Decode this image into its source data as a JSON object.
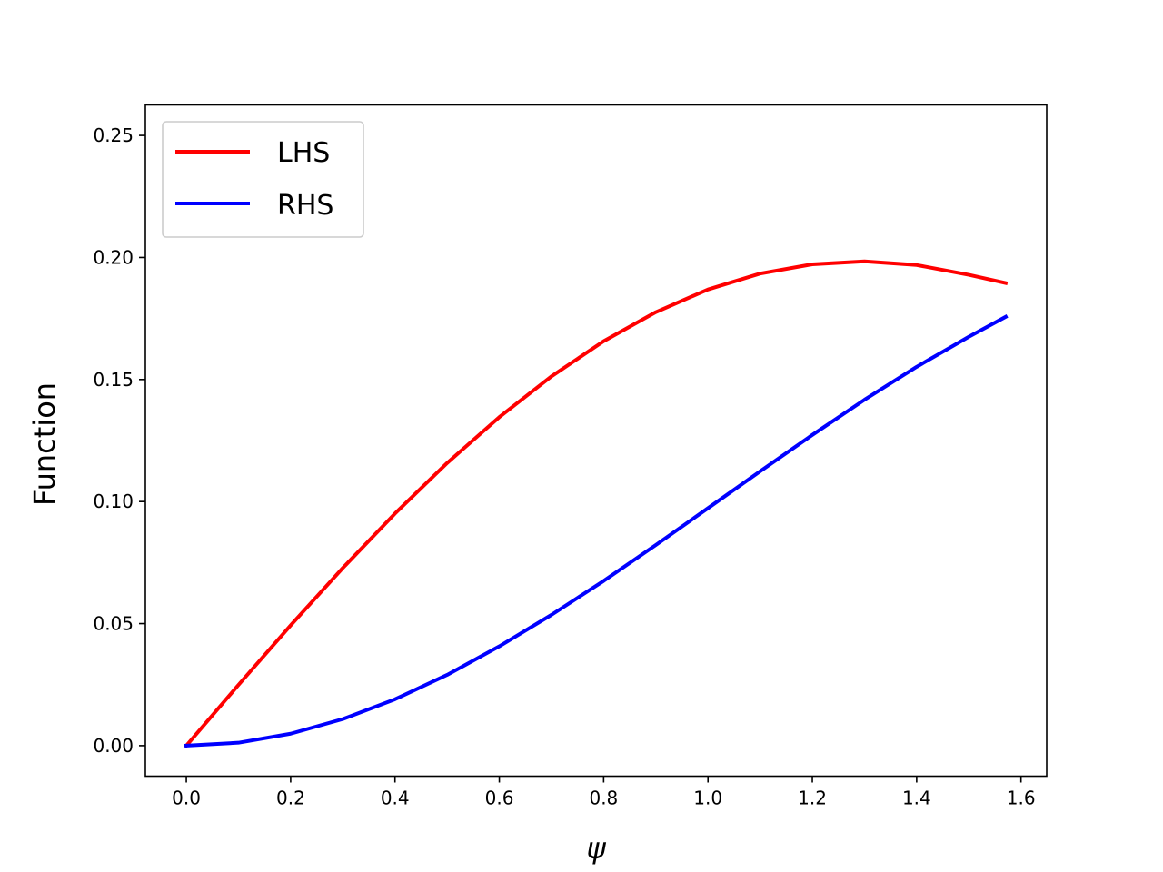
{
  "chart_data": {
    "type": "line",
    "title": "",
    "xlabel": "ψ",
    "ylabel": "Function",
    "xlim": [
      -0.0785,
      1.6493
    ],
    "ylim": [
      -0.0125,
      0.2625
    ],
    "xticks": [
      0.0,
      0.2,
      0.4,
      0.6,
      0.8,
      1.0,
      1.2,
      1.4,
      1.6
    ],
    "xtick_labels": [
      "0.0",
      "0.2",
      "0.4",
      "0.6",
      "0.8",
      "1.0",
      "1.2",
      "1.4",
      "1.6"
    ],
    "yticks": [
      0.0,
      0.05,
      0.1,
      0.15,
      0.2,
      0.25
    ],
    "ytick_labels": [
      "0.00",
      "0.05",
      "0.10",
      "0.15",
      "0.20",
      "0.25"
    ],
    "grid": false,
    "legend_position": "top-left",
    "x": [
      0.0,
      0.1,
      0.2,
      0.3,
      0.4,
      0.5,
      0.6,
      0.7,
      0.8,
      0.9,
      1.0,
      1.1,
      1.2,
      1.3,
      1.4,
      1.5,
      1.5708
    ],
    "series": [
      {
        "name": "LHS",
        "color": "#ff0000",
        "values": [
          0.0,
          0.0249,
          0.0493,
          0.0728,
          0.0951,
          0.1158,
          0.1346,
          0.1513,
          0.1657,
          0.1776,
          0.1869,
          0.1934,
          0.1972,
          0.1984,
          0.1969,
          0.1929,
          0.1895
        ]
      },
      {
        "name": "RHS",
        "color": "#0000ff",
        "values": [
          0.0,
          0.0012,
          0.0049,
          0.0109,
          0.019,
          0.029,
          0.0407,
          0.0536,
          0.0675,
          0.0822,
          0.0973,
          0.1124,
          0.1273,
          0.1417,
          0.1552,
          0.1675,
          0.1757
        ]
      }
    ]
  }
}
